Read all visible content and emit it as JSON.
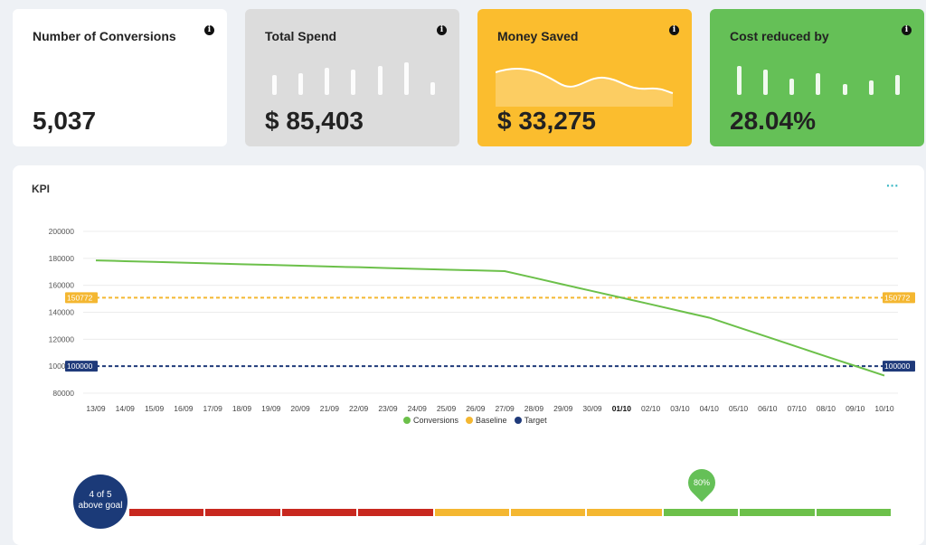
{
  "cards": [
    {
      "title": "Number of Conversions",
      "value": "5,037",
      "info": "i",
      "color": "#ffffff"
    },
    {
      "title": "Total Spend",
      "value": "$ 85,403",
      "info": "i",
      "color": "#dcdcdc"
    },
    {
      "title": "Money Saved",
      "value": "$ 33,275",
      "info": "i",
      "color": "#fbbd2e"
    },
    {
      "title": "Cost reduced by",
      "value": "28.04%",
      "info": "i",
      "color": "#65c057"
    }
  ],
  "kpi": {
    "title": "KPI",
    "menu": "···"
  },
  "chart_data": {
    "type": "line",
    "categories": [
      "13/09",
      "14/09",
      "15/09",
      "16/09",
      "17/09",
      "18/09",
      "19/09",
      "20/09",
      "21/09",
      "22/09",
      "23/09",
      "24/09",
      "25/09",
      "26/09",
      "27/09",
      "28/09",
      "29/09",
      "30/09",
      "01/10",
      "02/10",
      "03/10",
      "04/10",
      "05/10",
      "06/10",
      "07/10",
      "08/10",
      "09/10",
      "10/10"
    ],
    "series": [
      {
        "name": "Conversions",
        "color": "#6cc04a",
        "values": [
          178500,
          177900,
          177400,
          176800,
          176200,
          175600,
          175100,
          174500,
          173900,
          173400,
          172800,
          172200,
          171600,
          171100,
          170500,
          165600,
          160600,
          155700,
          150800,
          145900,
          140900,
          136000,
          128800,
          121700,
          114500,
          107300,
          100200,
          93000
        ]
      },
      {
        "name": "Baseline",
        "color": "#f4b731",
        "constant": 150772,
        "label": "150772"
      },
      {
        "name": "Target",
        "color": "#1f3a7a",
        "constant": 100000,
        "label": "100000"
      }
    ],
    "yticks": [
      "80000",
      "100000",
      "120000",
      "140000",
      "160000",
      "180000",
      "200000"
    ],
    "ylim": [
      80000,
      200000
    ],
    "bold_tick": "01/10",
    "legend": [
      "Conversions",
      "Baseline",
      "Target"
    ]
  },
  "goal": {
    "badge_line1": "4 of 5",
    "badge_line2": "above goal",
    "marker": "80%",
    "marker_fraction": 0.75,
    "segments": [
      "#c8281f",
      "#c8281f",
      "#c8281f",
      "#c8281f",
      "#f4b731",
      "#f4b731",
      "#f4b731",
      "#6cc04a",
      "#6cc04a",
      "#6cc04a"
    ]
  }
}
